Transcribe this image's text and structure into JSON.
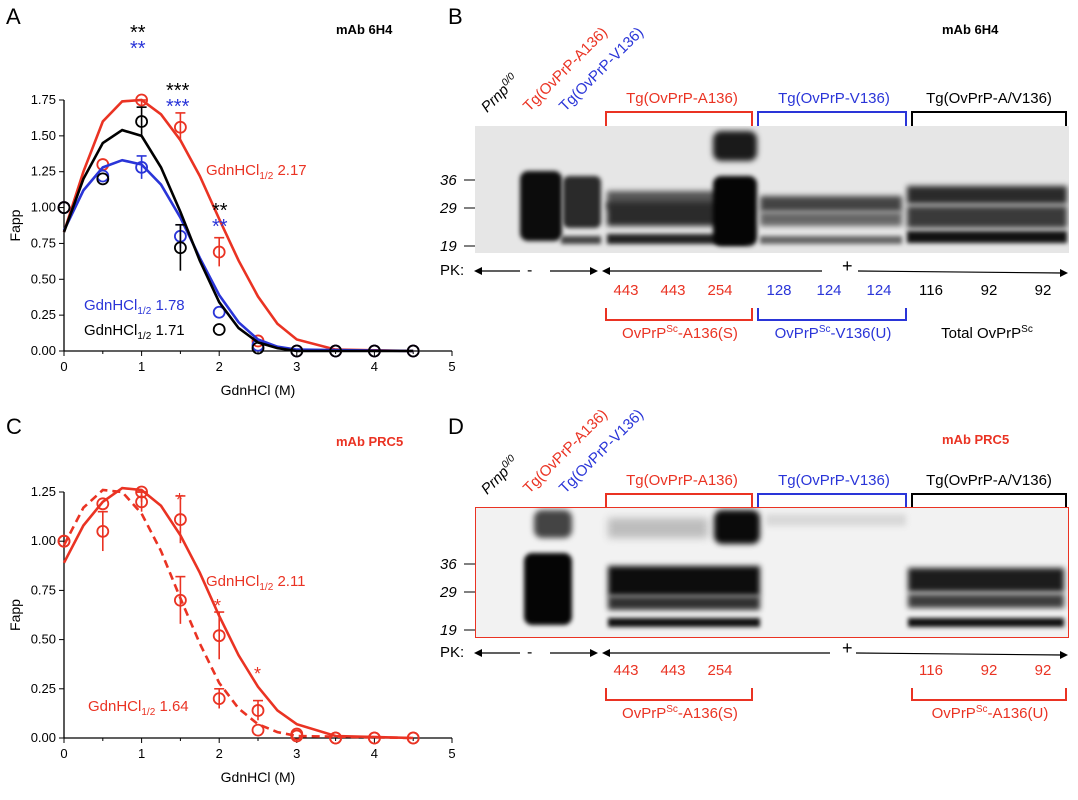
{
  "colors": {
    "red": "#ea3323",
    "blue": "#2a35d8",
    "black": "#000000"
  },
  "panelA": {
    "label": "A",
    "antibody": "mAb 6H4",
    "ylabel": "Fapp",
    "xlabel": "GdnHCl (M)",
    "ann_red": {
      "pre": "GdnHCl",
      "sub": "1/2",
      "val": "2.17"
    },
    "ann_blue": {
      "pre": "GdnHCl",
      "sub": "1/2",
      "val": "1.78"
    },
    "ann_black": {
      "pre": "GdnHCl",
      "sub": "1/2",
      "val": "1.71"
    },
    "stars": {
      "s1_black": "**",
      "s1_blue": "**",
      "s2_black": "***",
      "s2_blue": "***",
      "s3_black": "**",
      "s3_blue": "**"
    }
  },
  "panelB": {
    "label": "B",
    "antibody": "mAb 6H4",
    "lane_labels": [
      {
        "text": "Prnp",
        "sup": "0/0",
        "color": "#000000"
      },
      {
        "text": "Tg(OvPrP-A136)",
        "sup": "",
        "color": "#ea3323"
      },
      {
        "text": "Tg(OvPrP-V136)",
        "sup": "",
        "color": "#2a35d8"
      }
    ],
    "groups": [
      "Tg(OvPrP-A136)",
      "Tg(OvPrP-V136)",
      "Tg(OvPrP-A/V136)"
    ],
    "mw": [
      "36",
      "29",
      "19"
    ],
    "pk_label": "PK:",
    "pk_minus": "-",
    "pk_plus": "+",
    "numbers": [
      "443",
      "443",
      "254",
      "128",
      "124",
      "124",
      "116",
      "92",
      "92"
    ],
    "bottom": [
      {
        "pre": "OvPrP",
        "sup": "Sc",
        "post": "-A136(S)"
      },
      {
        "pre": "OvPrP",
        "sup": "Sc",
        "post": "-V136(U)"
      },
      {
        "pre": "Total OvPrP",
        "sup": "Sc",
        "post": ""
      }
    ]
  },
  "panelC": {
    "label": "C",
    "antibody": "mAb PRC5",
    "ylabel": "Fapp",
    "xlabel": "GdnHCl (M)",
    "ann_solid": {
      "pre": "GdnHCl",
      "sub": "1/2",
      "val": "2.11"
    },
    "ann_dashed": {
      "pre": "GdnHCl",
      "sub": "1/2",
      "val": "1.64"
    },
    "star": "*"
  },
  "panelD": {
    "label": "D",
    "antibody": "mAb PRC5",
    "lane_labels": [
      {
        "text": "Prnp",
        "sup": "0/0",
        "color": "#000000"
      },
      {
        "text": "Tg(OvPrP-A136)",
        "sup": "",
        "color": "#ea3323"
      },
      {
        "text": "Tg(OvPrP-V136)",
        "sup": "",
        "color": "#2a35d8"
      }
    ],
    "groups": [
      "Tg(OvPrP-A136)",
      "Tg(OvPrP-V136)",
      "Tg(OvPrP-A/V136)"
    ],
    "mw": [
      "36",
      "29",
      "19"
    ],
    "pk_label": "PK:",
    "pk_minus": "-",
    "pk_plus": "+",
    "numbers": [
      "443",
      "443",
      "254",
      "116",
      "92",
      "92"
    ],
    "bottom": [
      {
        "pre": "OvPrP",
        "sup": "Sc",
        "post": "-A136(S)"
      },
      {
        "pre": "OvPrP",
        "sup": "Sc",
        "post": "-A136(U)"
      }
    ]
  },
  "chart_data": [
    {
      "type": "line",
      "panel": "A",
      "title": "mAb 6H4",
      "xlabel": "GdnHCl (M)",
      "ylabel": "Fapp",
      "xlim": [
        0,
        5
      ],
      "ylim": [
        0,
        1.75
      ],
      "xticks": [
        "0",
        "1",
        "2",
        "3",
        "4",
        "5"
      ],
      "yticks": [
        "0.00",
        "0.25",
        "0.50",
        "0.75",
        "1.00",
        "1.25",
        "1.50",
        "1.75"
      ],
      "x": [
        0,
        0.5,
        1,
        1.5,
        2,
        2.5,
        3,
        3.5,
        4,
        4.5
      ],
      "series": [
        {
          "color": "#ea3323",
          "points": [
            1.0,
            1.3,
            1.75,
            1.56,
            0.69,
            0.07,
            0.0,
            0.0,
            0.0,
            0.0
          ],
          "err": [
            0,
            0,
            0.05,
            0.1,
            0.1,
            0,
            0,
            0,
            0,
            0
          ],
          "curve": [
            [
              0,
              0.83
            ],
            [
              0.25,
              1.25
            ],
            [
              0.5,
              1.6
            ],
            [
              0.75,
              1.74
            ],
            [
              1,
              1.75
            ],
            [
              1.25,
              1.65
            ],
            [
              1.5,
              1.47
            ],
            [
              1.75,
              1.22
            ],
            [
              2,
              0.92
            ],
            [
              2.25,
              0.63
            ],
            [
              2.5,
              0.38
            ],
            [
              2.75,
              0.19
            ],
            [
              3,
              0.08
            ],
            [
              3.5,
              0.01
            ],
            [
              4.5,
              0.0
            ]
          ]
        },
        {
          "color": "#2a35d8",
          "points": [
            1.0,
            1.22,
            1.28,
            0.8,
            0.27,
            0.04,
            0.0,
            0.0,
            0.0,
            0.0
          ],
          "err": [
            0,
            0,
            0.08,
            0.08,
            0,
            0,
            0,
            0,
            0,
            0
          ],
          "curve": [
            [
              0,
              0.84
            ],
            [
              0.25,
              1.12
            ],
            [
              0.5,
              1.28
            ],
            [
              0.75,
              1.33
            ],
            [
              1,
              1.3
            ],
            [
              1.25,
              1.16
            ],
            [
              1.5,
              0.93
            ],
            [
              1.75,
              0.65
            ],
            [
              2,
              0.39
            ],
            [
              2.25,
              0.2
            ],
            [
              2.5,
              0.08
            ],
            [
              2.75,
              0.03
            ],
            [
              3,
              0.01
            ],
            [
              4.5,
              0.0
            ]
          ]
        },
        {
          "color": "#000000",
          "points": [
            1.0,
            1.2,
            1.6,
            0.72,
            0.15,
            0.02,
            0.0,
            0.0,
            0.0,
            0.0
          ],
          "err": [
            0,
            0,
            0.1,
            0.16,
            0,
            0,
            0,
            0,
            0,
            0
          ],
          "curve": [
            [
              0,
              0.83
            ],
            [
              0.25,
              1.2
            ],
            [
              0.5,
              1.45
            ],
            [
              0.75,
              1.54
            ],
            [
              1,
              1.5
            ],
            [
              1.25,
              1.28
            ],
            [
              1.5,
              0.97
            ],
            [
              1.75,
              0.63
            ],
            [
              2,
              0.34
            ],
            [
              2.25,
              0.16
            ],
            [
              2.5,
              0.06
            ],
            [
              2.75,
              0.02
            ],
            [
              3,
              0.0
            ],
            [
              4.5,
              0.0
            ]
          ]
        }
      ]
    },
    {
      "type": "line",
      "panel": "C",
      "title": "mAb PRC5",
      "xlabel": "GdnHCl (M)",
      "ylabel": "Fapp",
      "xlim": [
        0,
        5
      ],
      "ylim": [
        0,
        1.25
      ],
      "xticks": [
        "0",
        "1",
        "2",
        "3",
        "4",
        "5"
      ],
      "yticks": [
        "0.00",
        "0.25",
        "0.50",
        "0.75",
        "1.00",
        "1.25"
      ],
      "x": [
        0,
        0.5,
        1,
        1.5,
        2,
        2.5,
        3,
        3.5,
        4,
        4.5
      ],
      "series": [
        {
          "style": "solid",
          "color": "#ea3323",
          "points": [
            1.0,
            1.19,
            1.25,
            1.11,
            0.52,
            0.14,
            0.02,
            0.0,
            0.0,
            0.0
          ],
          "err": [
            0,
            0,
            0.05,
            0.12,
            0.12,
            0.05,
            0,
            0,
            0,
            0
          ],
          "curve": [
            [
              0,
              0.89
            ],
            [
              0.25,
              1.08
            ],
            [
              0.5,
              1.2
            ],
            [
              0.75,
              1.27
            ],
            [
              1,
              1.26
            ],
            [
              1.25,
              1.18
            ],
            [
              1.5,
              1.03
            ],
            [
              1.75,
              0.84
            ],
            [
              2,
              0.62
            ],
            [
              2.25,
              0.42
            ],
            [
              2.5,
              0.26
            ],
            [
              2.75,
              0.14
            ],
            [
              3,
              0.07
            ],
            [
              3.5,
              0.01
            ],
            [
              4.5,
              0.0
            ]
          ]
        },
        {
          "style": "dashed",
          "color": "#ea3323",
          "points": [
            1.0,
            1.05,
            1.2,
            0.7,
            0.2,
            0.04,
            0.01,
            0.0,
            0.0,
            0.0
          ],
          "err": [
            0,
            0.1,
            0.05,
            0.12,
            0.05,
            0,
            0,
            0,
            0,
            0
          ],
          "curve": [
            [
              0,
              0.98
            ],
            [
              0.25,
              1.17
            ],
            [
              0.5,
              1.26
            ],
            [
              0.75,
              1.25
            ],
            [
              1,
              1.14
            ],
            [
              1.25,
              0.95
            ],
            [
              1.5,
              0.71
            ],
            [
              1.75,
              0.48
            ],
            [
              2,
              0.28
            ],
            [
              2.25,
              0.15
            ],
            [
              2.5,
              0.07
            ],
            [
              2.75,
              0.03
            ],
            [
              3,
              0.01
            ],
            [
              4.5,
              0.0
            ]
          ]
        }
      ]
    }
  ]
}
